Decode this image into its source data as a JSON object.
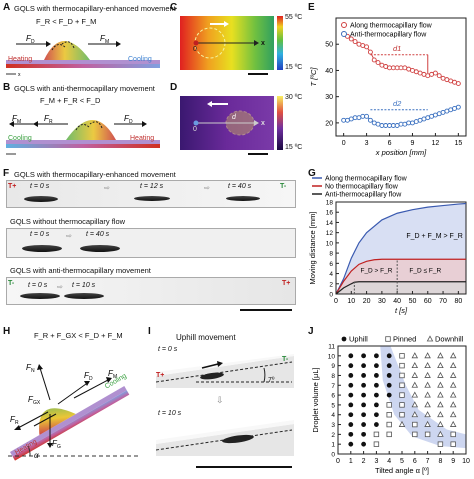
{
  "labels": {
    "A": "A",
    "B": "B",
    "C": "C",
    "D": "D",
    "E": "E",
    "F": "F",
    "G": "G",
    "H": "H",
    "I": "I",
    "J": "J"
  },
  "panelA": {
    "title": "GQLS with thermocapillary-enhanced movement",
    "eq": "F_R < F_D + F_M",
    "left": "Heating",
    "right": "Cooling"
  },
  "panelB": {
    "title": "GQLS with anti-thermocapillary movement",
    "eq": "F_M + F_R < F_D",
    "left": "Cooling",
    "right": "Heating"
  },
  "panelC": {
    "max": "55 ºC",
    "min": "15 ºC",
    "mark": "0",
    "x": "x"
  },
  "panelD": {
    "max": "30 ºC",
    "min": "15 ºC",
    "mark": "0",
    "x": "x",
    "d": "d"
  },
  "panelE": {
    "legend": [
      "Along thermocapillary flow",
      "Anti-thermocapillary flow"
    ],
    "xlabel": "x position [mm]",
    "ylabel": "T [ºC]",
    "d1": "d1",
    "d2": "d2",
    "xticks": [
      "0",
      "3",
      "6",
      "9",
      "12",
      "15"
    ],
    "yticks": [
      "20",
      "30",
      "40",
      "50"
    ]
  },
  "panelF": {
    "row1": "GQLS with thermocapillary-enhanced movement",
    "row2": "GQLS without thermocapillary flow",
    "row3": "GQLS with anti-thermocapillary movement",
    "t1": "t = 0 s",
    "t2": "t = 12 s",
    "t3": "t = 40 s",
    "t4": "t = 0 s",
    "t5": "t = 40 s",
    "t6": "t = 0 s",
    "t7": "t = 10 s",
    "tplus": "T+",
    "tminus": "T-"
  },
  "panelG": {
    "legend": [
      "Along thermocapillary flow",
      "No thermocapillary flow",
      "Anti-thermocapillary flow"
    ],
    "xlabel": "t [s]",
    "ylabel": "Moving distance [mm]",
    "xticks": [
      "0",
      "10",
      "20",
      "30",
      "40",
      "50",
      "60",
      "70",
      "80"
    ],
    "yticks": [
      "0",
      "2",
      "4",
      "6",
      "8",
      "10",
      "12",
      "14",
      "16",
      "18"
    ],
    "r1": "F_D + F_M > F_R",
    "r2": "F_D > F_R",
    "r3": "F_D ≤ F_R"
  },
  "panelH": {
    "eq": "F_R + F_GX < F_D + F_M",
    "heat": "Heating",
    "cool": "Cooling",
    "alpha": "α"
  },
  "panelI": {
    "title": "Uphill movement",
    "t0": "t = 0 s",
    "t1": "t = 10 s",
    "ang": "7º",
    "tplus": "T+",
    "tminus": "T-"
  },
  "panelJ": {
    "legend": [
      "Uphill",
      "Pinned",
      "Downhill"
    ],
    "xlabel": "Tilted angle α [º]",
    "ylabel": "Droplet volume [μL]",
    "xticks": [
      "0",
      "1",
      "2",
      "3",
      "4",
      "5",
      "6",
      "7",
      "8",
      "9",
      "10"
    ],
    "yticks": [
      "0",
      "1",
      "2",
      "3",
      "4",
      "5",
      "6",
      "7",
      "8",
      "9",
      "10",
      "11"
    ]
  },
  "chart_data": [
    {
      "type": "line",
      "id": "E",
      "xlabel": "x position [mm]",
      "ylabel": "T [ºC]",
      "xlim": [
        -1,
        16
      ],
      "ylim": [
        15,
        60
      ],
      "series": [
        {
          "name": "Along thermocapillary flow",
          "x": [
            0,
            0.5,
            1,
            1.5,
            2,
            2.5,
            3,
            3.5,
            4,
            4.5,
            5,
            5.5,
            6,
            6.5,
            7,
            7.5,
            8,
            8.5,
            9,
            9.5,
            10,
            10.5,
            11,
            11.5,
            12,
            12.5,
            13,
            13.5,
            14,
            14.5,
            15
          ],
          "y": [
            54,
            53,
            52,
            51,
            50,
            49.5,
            49,
            47,
            44,
            43,
            42,
            41.5,
            41,
            41,
            41,
            41,
            41,
            40.5,
            40,
            39.5,
            39,
            38.5,
            38,
            38.5,
            39,
            38,
            37,
            36.5,
            36,
            35.5,
            35
          ]
        },
        {
          "name": "Anti-thermocapillary flow",
          "x": [
            0,
            0.5,
            1,
            1.5,
            2,
            2.5,
            3,
            3.5,
            4,
            4.5,
            5,
            5.5,
            6,
            6.5,
            7,
            7.5,
            8,
            8.5,
            9,
            9.5,
            10,
            10.5,
            11,
            11.5,
            12,
            12.5,
            13,
            13.5,
            14,
            14.5,
            15
          ],
          "y": [
            21,
            21,
            21.5,
            22,
            22,
            22.5,
            22.5,
            21,
            20,
            19.5,
            19,
            19,
            19,
            19,
            19,
            19.5,
            19.5,
            20,
            20,
            20.5,
            21,
            21.5,
            22,
            22.5,
            23,
            23.5,
            24,
            24.5,
            25,
            25.5,
            26
          ]
        }
      ]
    },
    {
      "type": "line",
      "id": "G",
      "xlabel": "t [s]",
      "ylabel": "Moving distance [mm]",
      "xlim": [
        0,
        85
      ],
      "ylim": [
        0,
        18
      ],
      "series": [
        {
          "name": "Along thermocapillary flow",
          "x": [
            0,
            5,
            10,
            15,
            20,
            30,
            40,
            50,
            60,
            70,
            80,
            85
          ],
          "y": [
            0,
            3,
            7,
            10,
            12,
            14.5,
            15.8,
            16.5,
            17,
            17.3,
            17.6,
            17.7
          ]
        },
        {
          "name": "No thermocapillary flow",
          "x": [
            0,
            5,
            10,
            15,
            20,
            25,
            30,
            40,
            60,
            85
          ],
          "y": [
            0,
            2.5,
            4.5,
            5.8,
            6.4,
            6.7,
            6.8,
            6.8,
            6.8,
            6.8
          ]
        },
        {
          "name": "Anti-thermocapillary flow",
          "x": [
            0,
            5,
            10,
            12,
            15,
            20,
            40,
            60,
            85
          ],
          "y": [
            0,
            1.2,
            2,
            2.3,
            2.4,
            2.4,
            2.4,
            2.4,
            2.4
          ]
        }
      ]
    },
    {
      "type": "scatter",
      "id": "J",
      "xlabel": "Tilted angle α [º]",
      "ylabel": "Droplet volume [μL]",
      "xlim": [
        0,
        10
      ],
      "ylim": [
        0,
        11
      ],
      "series": [
        {
          "name": "Uphill",
          "points": [
            [
              1,
              1
            ],
            [
              1,
              2
            ],
            [
              1,
              3
            ],
            [
              1,
              4
            ],
            [
              1,
              5
            ],
            [
              1,
              6
            ],
            [
              1,
              7
            ],
            [
              1,
              8
            ],
            [
              1,
              9
            ],
            [
              1,
              10
            ],
            [
              2,
              1
            ],
            [
              2,
              2
            ],
            [
              2,
              3
            ],
            [
              2,
              4
            ],
            [
              2,
              5
            ],
            [
              2,
              6
            ],
            [
              2,
              7
            ],
            [
              2,
              8
            ],
            [
              2,
              9
            ],
            [
              2,
              10
            ],
            [
              3,
              3
            ],
            [
              3,
              4
            ],
            [
              3,
              5
            ],
            [
              3,
              6
            ],
            [
              3,
              7
            ],
            [
              3,
              8
            ],
            [
              3,
              9
            ],
            [
              3,
              10
            ],
            [
              4,
              6
            ],
            [
              4,
              7
            ],
            [
              4,
              8
            ],
            [
              4,
              9
            ],
            [
              4,
              10
            ]
          ]
        },
        {
          "name": "Pinned",
          "points": [
            [
              3,
              1
            ],
            [
              3,
              2
            ],
            [
              4,
              2
            ],
            [
              4,
              3
            ],
            [
              4,
              4
            ],
            [
              4,
              5
            ],
            [
              5,
              4
            ],
            [
              5,
              5
            ],
            [
              5,
              6
            ],
            [
              5,
              7
            ],
            [
              5,
              8
            ],
            [
              5,
              9
            ],
            [
              5,
              10
            ],
            [
              6,
              2
            ],
            [
              6,
              3
            ],
            [
              7,
              2
            ],
            [
              8,
              1
            ],
            [
              9,
              1
            ],
            [
              9,
              2
            ]
          ]
        },
        {
          "name": "Downhill",
          "points": [
            [
              5,
              3
            ],
            [
              6,
              4
            ],
            [
              6,
              5
            ],
            [
              6,
              6
            ],
            [
              6,
              7
            ],
            [
              6,
              8
            ],
            [
              6,
              9
            ],
            [
              6,
              10
            ],
            [
              7,
              3
            ],
            [
              7,
              4
            ],
            [
              7,
              5
            ],
            [
              7,
              6
            ],
            [
              7,
              7
            ],
            [
              7,
              8
            ],
            [
              7,
              9
            ],
            [
              7,
              10
            ],
            [
              8,
              2
            ],
            [
              8,
              3
            ],
            [
              8,
              4
            ],
            [
              8,
              5
            ],
            [
              8,
              6
            ],
            [
              8,
              7
            ],
            [
              8,
              8
            ],
            [
              8,
              9
            ],
            [
              8,
              10
            ],
            [
              9,
              3
            ],
            [
              9,
              4
            ],
            [
              9,
              5
            ],
            [
              9,
              6
            ],
            [
              9,
              7
            ],
            [
              9,
              8
            ],
            [
              9,
              9
            ],
            [
              9,
              10
            ]
          ]
        }
      ]
    }
  ]
}
